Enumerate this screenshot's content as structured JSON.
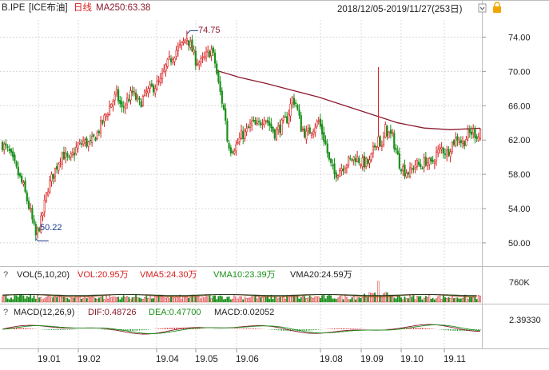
{
  "header": {
    "symbol": "B.IPE",
    "name": "[ICE布油]",
    "period": "日线",
    "ma_label": "MA250:63.38",
    "date_range": "2018/12/05-2019/11/27(253日)"
  },
  "colors": {
    "up": "#d81e1e",
    "down": "#1b8f1b",
    "ma250": "#8b1a2e",
    "vma5": "#d81e1e",
    "vma10": "#1b8f1b",
    "vma20": "#222222",
    "dif": "#8b1a2e",
    "dea": "#1b8f1b"
  },
  "price_panel": {
    "y_ticks": [
      "74.00",
      "70.00",
      "66.00",
      "62.00",
      "58.00",
      "54.00",
      "50.00"
    ],
    "annot_high": "74.75",
    "annot_low": "50.22"
  },
  "volume_panel": {
    "q": "?",
    "title": "VOL(5,10,20)",
    "vol": "VOL:20.95万",
    "vma5": "VMA5:24.30万",
    "vma10": "VMA10:23.39万",
    "vma20": "VMA20:24.59万",
    "tick": "760K"
  },
  "macd_panel": {
    "q": "?",
    "title": "MACD(12,26,9)",
    "dif": "DIF:0.48726",
    "dea": "DEA:0.47700",
    "macd": "MACD:0.02052",
    "tick": "2.39330"
  },
  "x_ticks": [
    "19.01",
    "19.02",
    "19.04",
    "19.05",
    "19.06",
    "19.08",
    "19.09",
    "19.10",
    "19.11"
  ],
  "chart_data": {
    "type": "candlestick",
    "ylim": [
      48.5,
      76
    ],
    "anchors": [
      [
        0,
        61.5
      ],
      [
        4,
        60.5
      ],
      [
        8,
        58.5
      ],
      [
        12,
        56.5
      ],
      [
        16,
        53.5
      ],
      [
        19,
        50.8
      ],
      [
        22,
        52.5
      ],
      [
        26,
        56.5
      ],
      [
        30,
        58.5
      ],
      [
        34,
        60.5
      ],
      [
        38,
        59.5
      ],
      [
        42,
        61.0
      ],
      [
        46,
        61.8
      ],
      [
        50,
        61.5
      ],
      [
        54,
        62.8
      ],
      [
        58,
        64.5
      ],
      [
        62,
        66.3
      ],
      [
        65,
        67.3
      ],
      [
        68,
        65.6
      ],
      [
        71,
        66.6
      ],
      [
        74,
        67.5
      ],
      [
        78,
        66.2
      ],
      [
        82,
        67.5
      ],
      [
        86,
        68.2
      ],
      [
        90,
        68.8
      ],
      [
        93,
        70.5
      ],
      [
        96,
        71.5
      ],
      [
        99,
        72.5
      ],
      [
        102,
        73.0
      ],
      [
        105,
        74.0
      ],
      [
        108,
        72.5
      ],
      [
        110,
        71.3
      ],
      [
        113,
        71.0
      ],
      [
        116,
        71.8
      ],
      [
        119,
        72.5
      ],
      [
        121,
        71.0
      ],
      [
        123,
        68.5
      ],
      [
        125,
        66.5
      ],
      [
        127,
        64.5
      ],
      [
        128,
        62.0
      ],
      [
        130,
        61.0
      ],
      [
        133,
        61.3
      ],
      [
        136,
        62.5
      ],
      [
        139,
        63.0
      ],
      [
        142,
        64.0
      ],
      [
        145,
        63.5
      ],
      [
        149,
        64.8
      ],
      [
        152,
        63.8
      ],
      [
        155,
        62.8
      ],
      [
        158,
        63.5
      ],
      [
        162,
        64.5
      ],
      [
        165,
        66.8
      ],
      [
        167,
        66.3
      ],
      [
        170,
        63.5
      ],
      [
        173,
        62.6
      ],
      [
        176,
        63.3
      ],
      [
        180,
        64.2
      ],
      [
        184,
        61.5
      ],
      [
        186,
        59.5
      ],
      [
        189,
        58.0
      ],
      [
        193,
        58.8
      ],
      [
        197,
        59.5
      ],
      [
        201,
        60.0
      ],
      [
        205,
        59.3
      ],
      [
        209,
        59.3
      ],
      [
        212,
        61.3
      ],
      [
        214,
        62.4
      ],
      [
        216,
        61.0
      ],
      [
        218,
        63.3
      ],
      [
        220,
        62.7
      ],
      [
        222,
        62.3
      ],
      [
        224,
        60.8
      ],
      [
        226,
        59.3
      ],
      [
        229,
        58.4
      ],
      [
        232,
        58.2
      ],
      [
        235,
        59.2
      ],
      [
        238,
        59.0
      ],
      [
        241,
        59.6
      ],
      [
        244,
        59.1
      ],
      [
        247,
        60.4
      ],
      [
        250,
        61.0
      ],
      [
        253,
        60.5
      ],
      [
        256,
        61.6
      ],
      [
        259,
        62.3
      ],
      [
        262,
        61.6
      ],
      [
        265,
        62.6
      ],
      [
        268,
        63.0
      ],
      [
        271,
        62.4
      ],
      [
        272,
        63.3
      ]
    ],
    "events": [
      {
        "at": 105,
        "high": 74.75
      },
      {
        "at": 19,
        "low": 50.22
      },
      {
        "at": 214,
        "high": 70.5
      }
    ],
    "ma250": [
      [
        122,
        70.1
      ],
      [
        135,
        69.3
      ],
      [
        150,
        68.6
      ],
      [
        165,
        67.8
      ],
      [
        180,
        67.0
      ],
      [
        195,
        66.0
      ],
      [
        210,
        65.0
      ],
      [
        225,
        64.0
      ],
      [
        240,
        63.4
      ],
      [
        255,
        63.2
      ],
      [
        272,
        63.38
      ]
    ]
  }
}
